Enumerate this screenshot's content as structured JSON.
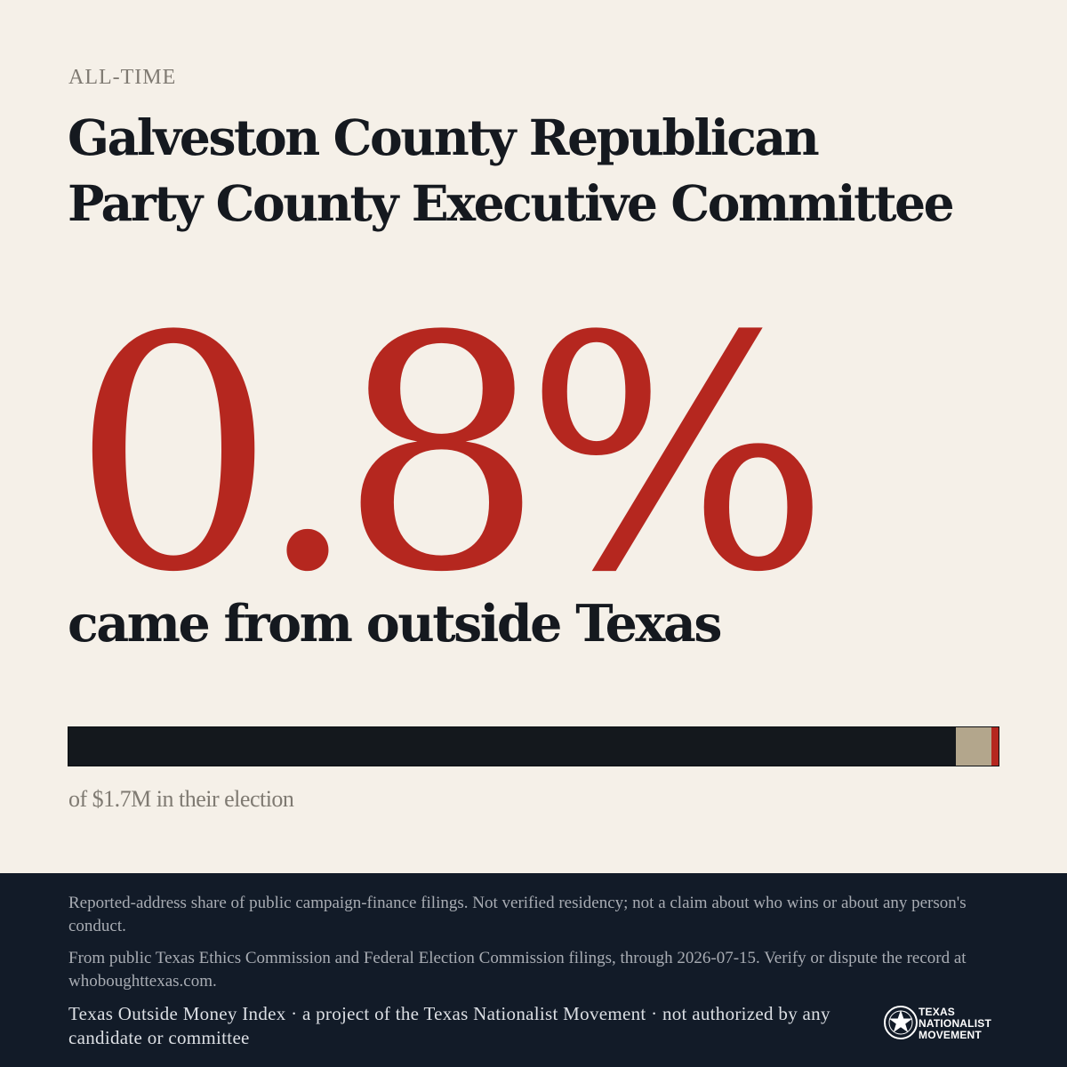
{
  "eyebrow": "ALL-TIME",
  "title_line1": "Galveston County Republican",
  "title_line2": "Party County Executive Committee",
  "headline_percent": "0.8%",
  "headline_sub": "came from outside Texas",
  "bar": {
    "outside_texas_share": 0.008,
    "colors": {
      "in_state": "#14181d",
      "other": "#b3a68c",
      "outside": "#b5271f"
    }
  },
  "caption": "of $1.7M in their election",
  "footer": {
    "disclaimer": "Reported-address share of public campaign-finance filings. Not verified residency; not a claim about who wins or about any person's conduct.",
    "source": "From public Texas Ethics Commission and Federal Election Commission filings, through 2026-07-15. Verify or dispute the record at whoboughttexas.com.",
    "credit": "Texas Outside Money Index · a project of the Texas Nationalist Movement · not authorized by any candidate or committee"
  },
  "logo": {
    "icon": "star-seal-icon",
    "line1": "TEXAS",
    "line2": "NATIONALIST",
    "line3": "MOVEMENT"
  },
  "accent_color": "#b5271f",
  "background_color": "#f5f0e8",
  "footer_color": "#121b28"
}
